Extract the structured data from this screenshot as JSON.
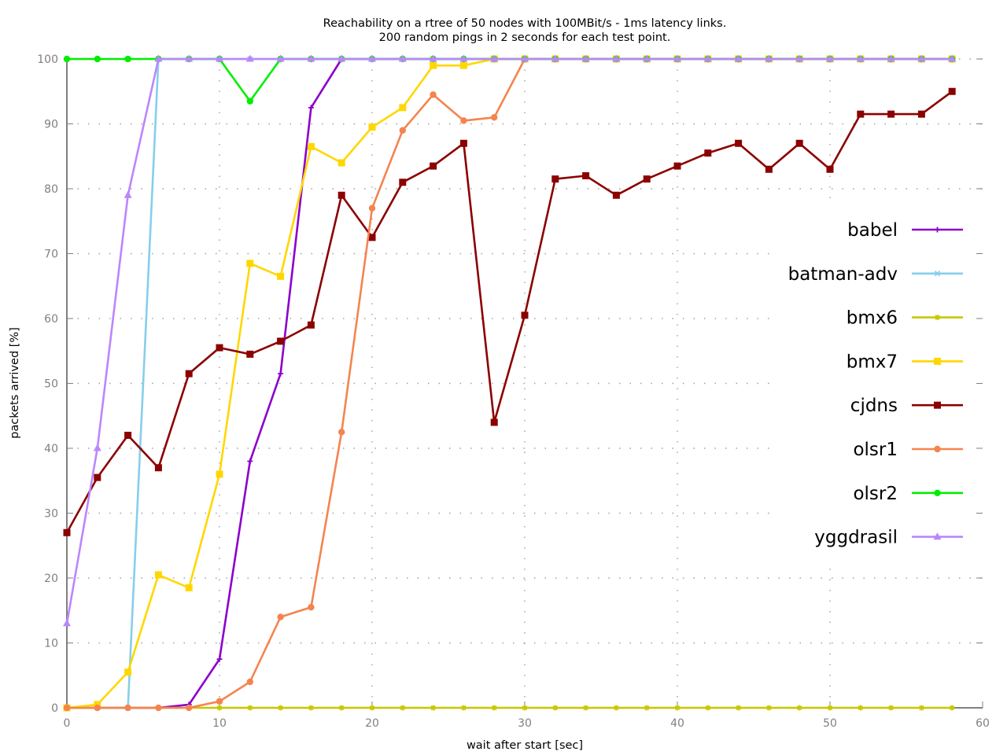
{
  "chart_data": {
    "type": "line",
    "title": "Reachability on a rtree of 50 nodes with 100MBit/s - 1ms latency links.",
    "subtitle": "200 random pings in 2 seconds for each test point.",
    "xlabel": "wait after start [sec]",
    "ylabel": "packets arrived [%]",
    "xlim": [
      0,
      60
    ],
    "ylim": [
      0,
      100
    ],
    "xticks": [
      "0",
      "10",
      "20",
      "30",
      "40",
      "50",
      "60"
    ],
    "yticks": [
      "0",
      "10",
      "20",
      "30",
      "40",
      "50",
      "60",
      "70",
      "80",
      "90",
      "100"
    ],
    "grid": true,
    "legend_position": "right",
    "x": [
      0,
      2,
      4,
      6,
      8,
      10,
      12,
      14,
      16,
      18,
      20,
      22,
      24,
      26,
      28,
      30,
      32,
      34,
      36,
      38,
      40,
      42,
      44,
      46,
      48,
      50,
      52,
      54,
      56,
      58
    ],
    "series": [
      {
        "name": "babel",
        "color": "#8b00cc",
        "marker": "plus",
        "values": [
          0,
          0,
          0,
          0,
          0.5,
          7.5,
          38,
          51.5,
          92.5,
          100,
          100,
          100,
          100,
          100,
          100,
          100,
          100,
          100,
          100,
          100,
          100,
          100,
          100,
          100,
          100,
          100,
          100,
          100,
          100,
          100
        ]
      },
      {
        "name": "batman-adv",
        "color": "#87ceeb",
        "marker": "cross",
        "values": [
          0,
          0,
          0,
          100,
          100,
          100,
          100,
          100,
          100,
          100,
          100,
          100,
          100,
          100,
          100,
          100,
          100,
          100,
          100,
          100,
          100,
          100,
          100,
          100,
          100,
          100,
          100,
          100,
          100,
          100
        ]
      },
      {
        "name": "bmx6",
        "color": "#c8c800",
        "marker": "star",
        "values": [
          0,
          0,
          0,
          0,
          0,
          0,
          0,
          0,
          0,
          0,
          0,
          0,
          0,
          0,
          0,
          0,
          0,
          0,
          0,
          0,
          0,
          0,
          0,
          0,
          0,
          0,
          0,
          0,
          0,
          0
        ]
      },
      {
        "name": "bmx7",
        "color": "#ffd700",
        "marker": "square",
        "values": [
          0,
          0.5,
          5.5,
          20.5,
          18.5,
          36,
          68.5,
          66.5,
          86.5,
          84,
          89.5,
          92.5,
          99,
          99,
          100,
          100,
          100,
          100,
          100,
          100,
          100,
          100,
          100,
          100,
          100,
          100,
          100,
          100,
          100,
          100
        ]
      },
      {
        "name": "cjdns",
        "color": "#8b0000",
        "marker": "square",
        "values": [
          27,
          35.5,
          42,
          37,
          51.5,
          55.5,
          54.5,
          56.5,
          59,
          79,
          72.5,
          81,
          83.5,
          87,
          44,
          60.5,
          81.5,
          82,
          79,
          81.5,
          83.5,
          85.5,
          87,
          83,
          87,
          83,
          91.5,
          91.5,
          91.5,
          95
        ]
      },
      {
        "name": "olsr1",
        "color": "#f4844f",
        "marker": "circle",
        "values": [
          0,
          0,
          0,
          0,
          0,
          1,
          4,
          14,
          15.5,
          42.5,
          77,
          89,
          94.5,
          90.5,
          91,
          100,
          100,
          100,
          100,
          100,
          100,
          100,
          100,
          100,
          100,
          100,
          100,
          100,
          100,
          100
        ]
      },
      {
        "name": "olsr2",
        "color": "#00ee00",
        "marker": "circle",
        "values": [
          100,
          100,
          100,
          100,
          100,
          100,
          93.5,
          100,
          100,
          100,
          100,
          100,
          100,
          100,
          100,
          100,
          100,
          100,
          100,
          100,
          100,
          100,
          100,
          100,
          100,
          100,
          100,
          100,
          100,
          100
        ]
      },
      {
        "name": "yggdrasil",
        "color": "#bb86fc",
        "marker": "triangle",
        "values": [
          13,
          40,
          79,
          100,
          100,
          100,
          100,
          100,
          100,
          100,
          100,
          100,
          100,
          100,
          100,
          100,
          100,
          100,
          100,
          100,
          100,
          100,
          100,
          100,
          100,
          100,
          100,
          100,
          100,
          100
        ]
      }
    ]
  }
}
